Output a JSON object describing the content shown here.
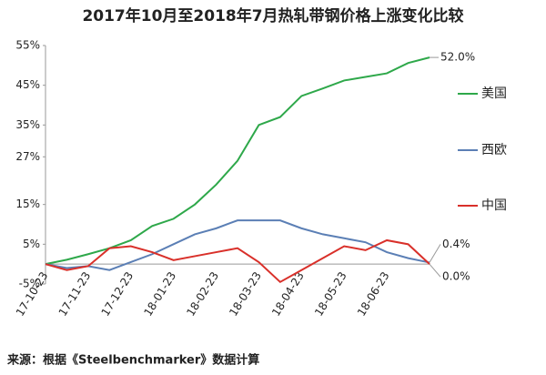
{
  "chart_data": {
    "type": "line",
    "title": "2017年10月至2018年7月热轧带钢价格上涨变化比较",
    "source": "来源：根据《Steelbenchmarker》数据计算",
    "categories": [
      "17-10-23",
      null,
      "17-11-23",
      null,
      "17-12-23",
      null,
      "18-01-23",
      null,
      "18-02-23",
      null,
      "18-03-23",
      null,
      "18-04-23",
      null,
      "18-05-23",
      null,
      "18-06-23",
      null,
      null
    ],
    "series": [
      {
        "name": "美国",
        "color": "#2ea84a",
        "values": [
          0,
          1.1,
          2.5,
          4,
          6,
          9.6,
          11.4,
          15,
          20,
          26,
          35,
          37,
          42.3,
          44.2,
          46.2,
          47.1,
          48,
          50.6,
          52.0
        ],
        "value_labels": [
          null,
          null,
          null,
          null,
          null,
          null,
          null,
          null,
          null,
          null,
          null,
          null,
          null,
          null,
          null,
          null,
          null,
          null,
          "52.0%"
        ]
      },
      {
        "name": "西欧",
        "color": "#5b7fb5",
        "values": [
          0,
          -1,
          -0.5,
          -1.5,
          0.5,
          2.5,
          5,
          7.5,
          9,
          11,
          11,
          11,
          9,
          7.5,
          6.5,
          5.5,
          3,
          1.5,
          0.4
        ],
        "value_labels": [
          null,
          null,
          null,
          null,
          null,
          null,
          null,
          null,
          null,
          null,
          null,
          null,
          null,
          null,
          null,
          null,
          null,
          null,
          "0.4%"
        ]
      },
      {
        "name": "中国",
        "color": "#d9302a",
        "values": [
          0,
          -1.5,
          -0.5,
          4,
          4.5,
          3,
          1,
          2,
          3,
          4,
          0.5,
          -4.5,
          -1.5,
          1.5,
          4.5,
          3.5,
          6,
          5,
          0
        ],
        "value_labels": [
          null,
          null,
          null,
          null,
          null,
          null,
          null,
          null,
          null,
          null,
          null,
          null,
          null,
          null,
          null,
          null,
          null,
          null,
          "0.0%"
        ]
      }
    ],
    "ylim": [
      -5,
      55
    ],
    "yticks": [
      {
        "value": -5,
        "label": "-5%"
      },
      {
        "value": 5,
        "label": "5%"
      },
      {
        "value": 15,
        "label": "15%"
      },
      {
        "value": 27,
        "label": "27%"
      },
      {
        "value": 35,
        "label": "35%"
      },
      {
        "value": 45,
        "label": "45%"
      },
      {
        "value": 55,
        "label": "55%"
      }
    ],
    "legend": "right"
  }
}
